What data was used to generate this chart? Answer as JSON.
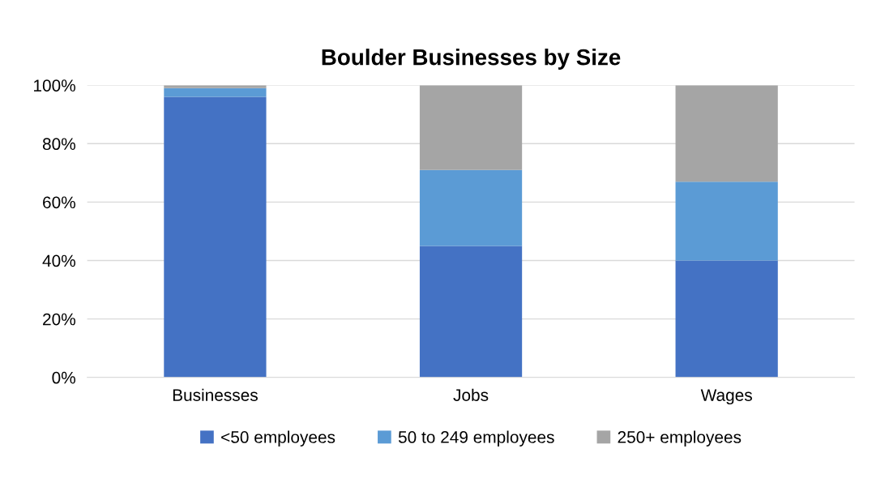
{
  "chart_data": {
    "type": "bar",
    "title": "Boulder Businesses by Size",
    "stacked": true,
    "categories": [
      "Businesses",
      "Jobs",
      "Wages"
    ],
    "series": [
      {
        "name": "<50 employees",
        "color": "#4472c4",
        "values": [
          96,
          45,
          40
        ]
      },
      {
        "name": "50 to 249 employees",
        "color": "#5b9bd5",
        "values": [
          3,
          26,
          27
        ]
      },
      {
        "name": "250+ employees",
        "color": "#a5a5a5",
        "values": [
          1,
          29,
          33
        ]
      }
    ],
    "ylim": [
      0,
      100
    ],
    "yticks": [
      {
        "value": 0,
        "label": "0%"
      },
      {
        "value": 20,
        "label": "20%"
      },
      {
        "value": 40,
        "label": "40%"
      },
      {
        "value": 60,
        "label": "60%"
      },
      {
        "value": 80,
        "label": "80%"
      },
      {
        "value": 100,
        "label": "100%"
      }
    ],
    "grid": "y",
    "legend": "bottom"
  }
}
